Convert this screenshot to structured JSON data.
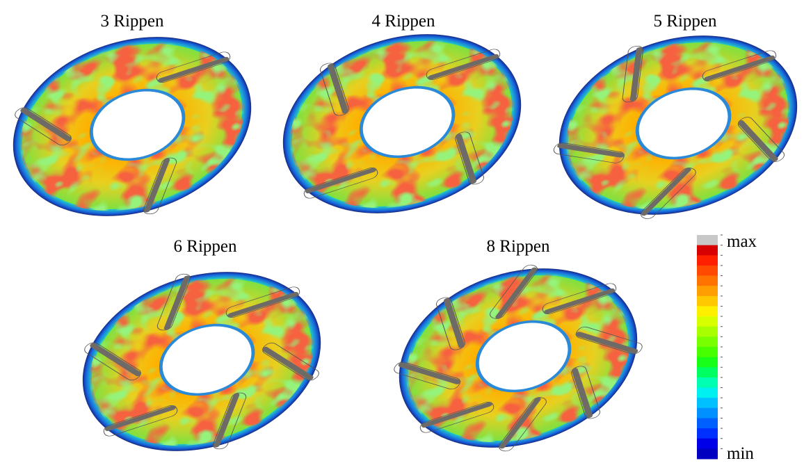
{
  "panels": [
    {
      "label": "3 Rippen"
    },
    {
      "label": "4 Rippen"
    },
    {
      "label": "5 Rippen"
    },
    {
      "label": "6 Rippen"
    },
    {
      "label": "8 Rippen"
    }
  ],
  "legend": {
    "max": "max",
    "min": "min"
  }
}
